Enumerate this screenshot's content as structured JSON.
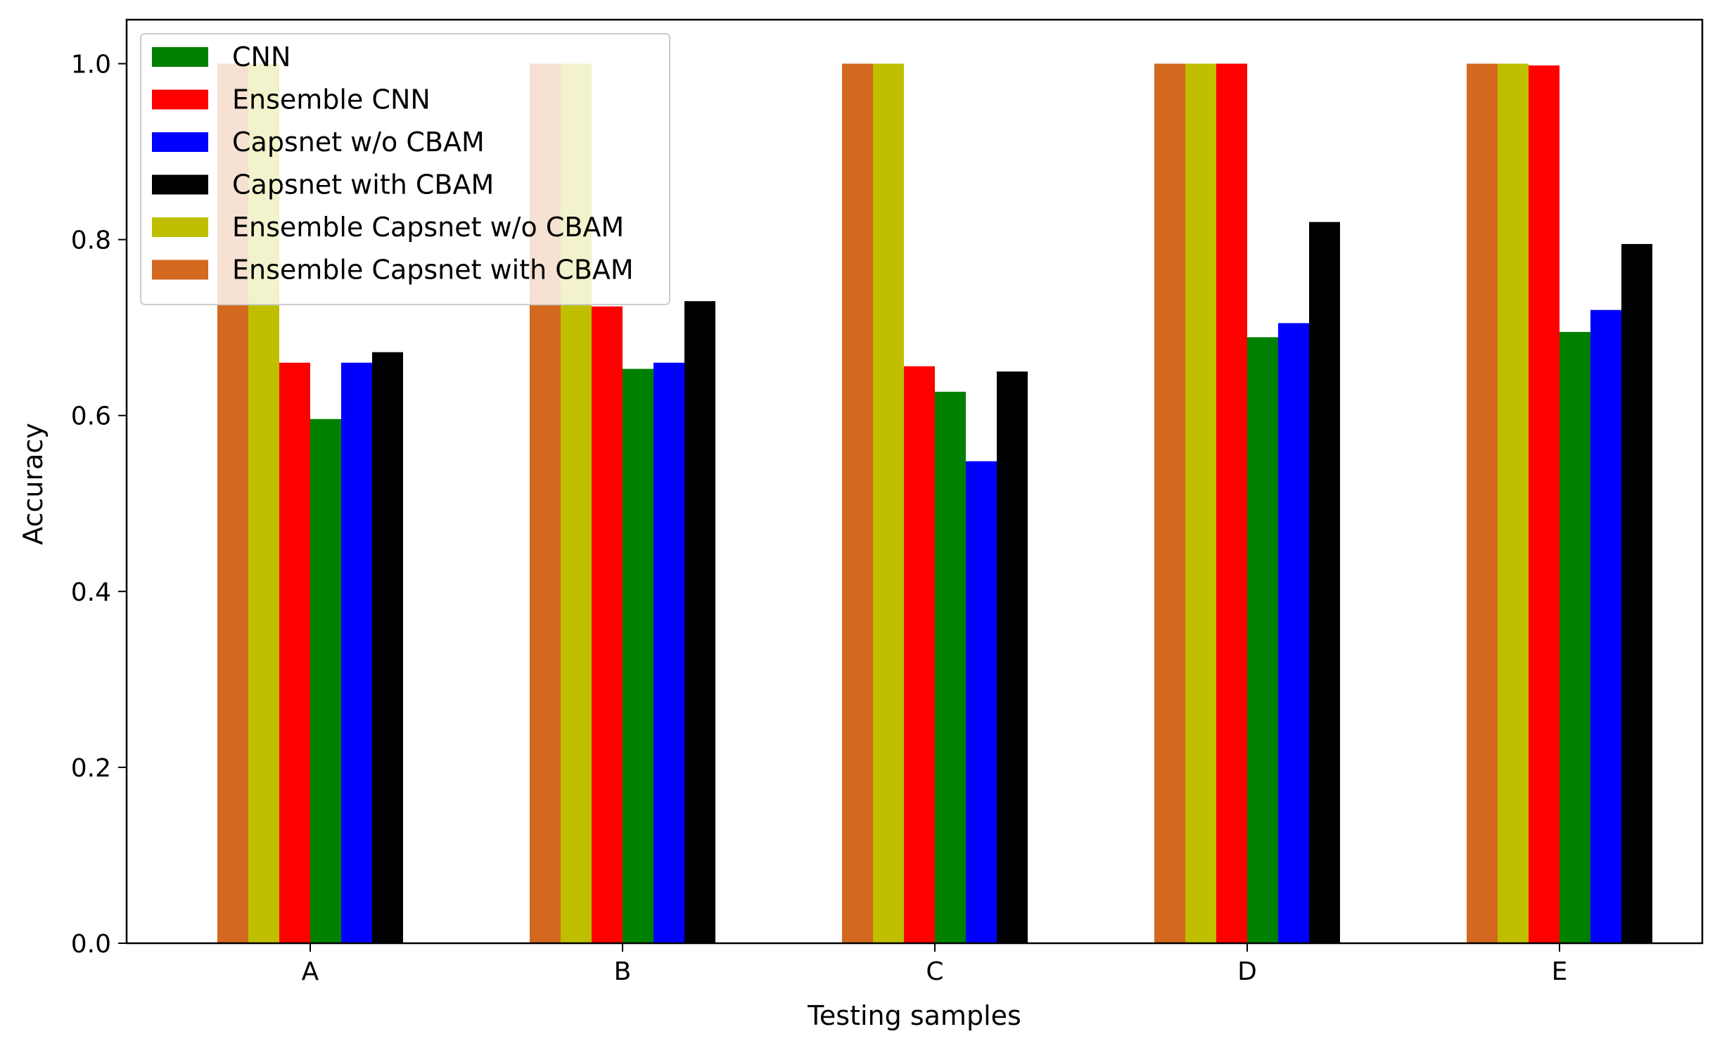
{
  "chart_data": {
    "type": "bar",
    "title": "",
    "xlabel": "Testing samples",
    "ylabel": "Accuracy",
    "ylim": [
      0,
      1.05
    ],
    "yticks": [
      0.0,
      0.2,
      0.4,
      0.6,
      0.8,
      1.0
    ],
    "ytick_labels": [
      "0.0",
      "0.2",
      "0.4",
      "0.6",
      "0.8",
      "1.0"
    ],
    "categories": [
      "A",
      "B",
      "C",
      "D",
      "E"
    ],
    "grid": false,
    "legend_position": "top-left",
    "series": [
      {
        "name": "Ensemble Capsnet with CBAM",
        "color": "#d2691e",
        "values": [
          1.0,
          1.0,
          1.0,
          1.0,
          1.0
        ]
      },
      {
        "name": "Ensemble Capsnet w/o CBAM",
        "color": "#bfbf00",
        "values": [
          1.0,
          1.0,
          1.0,
          1.0,
          1.0
        ]
      },
      {
        "name": "Ensemble CNN",
        "color": "#ff0000",
        "values": [
          0.66,
          0.724,
          0.656,
          1.0,
          0.998
        ]
      },
      {
        "name": "CNN",
        "color": "#008000",
        "values": [
          0.596,
          0.653,
          0.627,
          0.689,
          0.695
        ]
      },
      {
        "name": "Capsnet w/o CBAM",
        "color": "#0000ff",
        "values": [
          0.66,
          0.66,
          0.548,
          0.705,
          0.72
        ]
      },
      {
        "name": "Capsnet with CBAM",
        "color": "#000000",
        "values": [
          0.672,
          0.73,
          0.65,
          0.82,
          0.795
        ]
      }
    ],
    "legend_order": [
      "CNN",
      "Ensemble CNN",
      "Capsnet w/o CBAM",
      "Capsnet with CBAM",
      "Ensemble Capsnet w/o CBAM",
      "Ensemble Capsnet with CBAM"
    ]
  }
}
